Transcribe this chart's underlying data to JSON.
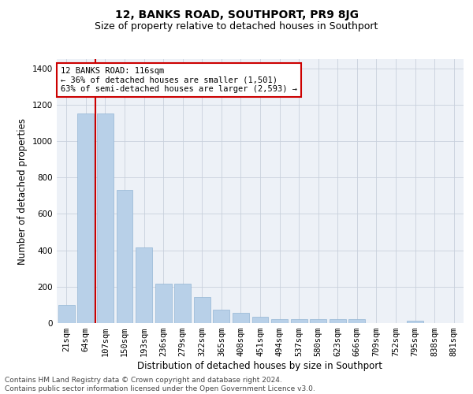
{
  "title": "12, BANKS ROAD, SOUTHPORT, PR9 8JG",
  "subtitle": "Size of property relative to detached houses in Southport",
  "xlabel": "Distribution of detached houses by size in Southport",
  "ylabel": "Number of detached properties",
  "categories": [
    "21sqm",
    "64sqm",
    "107sqm",
    "150sqm",
    "193sqm",
    "236sqm",
    "279sqm",
    "322sqm",
    "365sqm",
    "408sqm",
    "451sqm",
    "494sqm",
    "537sqm",
    "580sqm",
    "623sqm",
    "666sqm",
    "709sqm",
    "752sqm",
    "795sqm",
    "838sqm",
    "881sqm"
  ],
  "values": [
    100,
    1150,
    1150,
    730,
    415,
    215,
    215,
    145,
    75,
    55,
    35,
    20,
    20,
    20,
    20,
    20,
    0,
    0,
    15,
    0,
    0
  ],
  "bar_color": "#b8d0e8",
  "bar_edge_color": "#93b5d5",
  "vline_color": "#cc0000",
  "vline_x": 1.5,
  "annotation_text": "12 BANKS ROAD: 116sqm\n← 36% of detached houses are smaller (1,501)\n63% of semi-detached houses are larger (2,593) →",
  "annotation_box_facecolor": "#ffffff",
  "annotation_box_edgecolor": "#cc0000",
  "ylim": [
    0,
    1450
  ],
  "yticks": [
    0,
    200,
    400,
    600,
    800,
    1000,
    1200,
    1400
  ],
  "bg_color": "#edf1f7",
  "grid_color": "#c8d0dc",
  "footer": "Contains HM Land Registry data © Crown copyright and database right 2024.\nContains public sector information licensed under the Open Government Licence v3.0.",
  "title_fontsize": 10,
  "subtitle_fontsize": 9,
  "xlabel_fontsize": 8.5,
  "ylabel_fontsize": 8.5,
  "tick_fontsize": 7.5,
  "annot_fontsize": 7.5,
  "footer_fontsize": 6.5
}
